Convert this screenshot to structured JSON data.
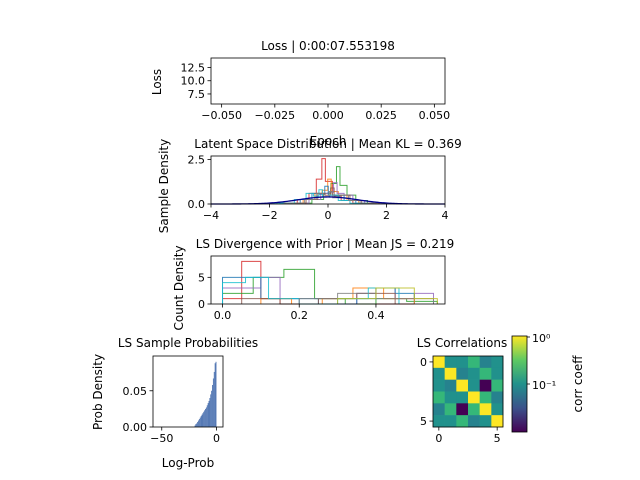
{
  "chart_data": [
    {
      "id": "loss",
      "type": "line",
      "title": "Loss | 0:00:07.553198",
      "xlabel": "Epoch",
      "ylabel": "Loss",
      "xlim": [
        -0.055,
        0.055
      ],
      "ylim": [
        5.6,
        14.3
      ],
      "xticks": [
        "−0.050",
        "−0.025",
        "0.000",
        "0.025",
        "0.050"
      ],
      "yticks": [
        "7.5",
        "10.0",
        "12.5"
      ],
      "series": []
    },
    {
      "id": "latent",
      "type": "line",
      "title": "Latent Space Distribution | Mean KL = 0.369",
      "xlabel": "",
      "ylabel": "Sample Density",
      "xlim": [
        -4,
        4
      ],
      "ylim": [
        0,
        2.7
      ],
      "xticks": [
        "−4",
        "−2",
        "0",
        "2",
        "4"
      ],
      "yticks": [
        "0.0",
        "2.5"
      ],
      "prior_color": "#00008b",
      "series_colors": [
        "#d62728",
        "#2ca02c",
        "#ff7f0e",
        "#9467bd",
        "#1f77b4",
        "#8c564b",
        "#17becf",
        "#7f7f7f"
      ],
      "peaks": [
        {
          "x": -0.15,
          "h": 2.55
        },
        {
          "x": 0.35,
          "h": 2.1
        },
        {
          "x": 0.05,
          "h": 1.4
        },
        {
          "x": 0.25,
          "h": 1.2
        },
        {
          "x": -0.05,
          "h": 1.0
        },
        {
          "x": 0.15,
          "h": 0.9
        },
        {
          "x": -0.25,
          "h": 0.8
        },
        {
          "x": 0.1,
          "h": 0.7
        }
      ]
    },
    {
      "id": "divergence",
      "type": "line",
      "title": "LS Divergence with Prior | Mean JS = 0.219",
      "xlabel": "",
      "ylabel": "Count Density",
      "xlim": [
        -0.03,
        0.58
      ],
      "ylim": [
        0,
        9
      ],
      "xticks": [
        "0.0",
        "0.2",
        "0.4"
      ],
      "yticks": [
        "0",
        "5"
      ],
      "series": [
        {
          "color": "#d62728",
          "edges": [
            0,
            0.05,
            0.1,
            0.15,
            0.2,
            0.25,
            0.3,
            0.35,
            0.4,
            0.45,
            0.5
          ],
          "values": [
            1,
            8,
            1,
            0,
            0,
            0,
            0,
            0,
            0,
            0
          ]
        },
        {
          "color": "#2ca02c",
          "edges": [
            0,
            0.08,
            0.16,
            0.24,
            0.32,
            0.4,
            0.48,
            0.56
          ],
          "values": [
            2,
            5,
            6.5,
            1,
            0,
            1,
            0.5
          ]
        },
        {
          "color": "#9467bd",
          "edges": [
            0,
            0.05,
            0.1,
            0.15,
            0.2,
            0.25,
            0.3,
            0.35,
            0.4,
            0.45,
            0.5,
            0.55
          ],
          "values": [
            3,
            3,
            5,
            1,
            0,
            0,
            0,
            2,
            3,
            1,
            2
          ]
        },
        {
          "color": "#1f77b4",
          "edges": [
            0,
            0.05,
            0.1,
            0.15,
            0.2,
            0.25,
            0.3,
            0.35,
            0.4,
            0.45,
            0.5
          ],
          "values": [
            5,
            5,
            1,
            1,
            1,
            0,
            0,
            1,
            3,
            2
          ]
        },
        {
          "color": "#ff7f0e",
          "edges": [
            0.1,
            0.18,
            0.26,
            0.34,
            0.42,
            0.5
          ],
          "values": [
            1,
            0,
            1,
            3,
            1
          ]
        },
        {
          "color": "#8c564b",
          "edges": [
            0.05,
            0.15,
            0.25,
            0.35,
            0.45
          ],
          "values": [
            1,
            0,
            1,
            2
          ]
        },
        {
          "color": "#17becf",
          "edges": [
            0,
            0.06,
            0.12,
            0.2,
            0.3,
            0.38,
            0.46
          ],
          "values": [
            4,
            5,
            1,
            0,
            1,
            3
          ]
        },
        {
          "color": "#7f7f7f",
          "edges": [
            0.2,
            0.3,
            0.4,
            0.5,
            0.55
          ],
          "values": [
            1,
            2,
            1,
            1
          ]
        },
        {
          "color": "#bcbd22",
          "edges": [
            0.3,
            0.4,
            0.5,
            0.56
          ],
          "values": [
            1,
            3,
            1
          ]
        }
      ]
    },
    {
      "id": "probabilities",
      "type": "bar",
      "title": "LS Sample Probabilities",
      "xlabel": "Log-Prob",
      "ylabel": "Prob Density",
      "xlim": [
        -58,
        6
      ],
      "ylim": [
        0,
        0.098
      ],
      "xticks": [
        "−50",
        "0"
      ],
      "yticks": [
        "0.00",
        "0.05"
      ],
      "bar_color": "#4c72b0",
      "bins_start": -20,
      "bin_width": 0.8,
      "values": [
        0.002,
        0.004,
        0.005,
        0.007,
        0.009,
        0.011,
        0.013,
        0.015,
        0.017,
        0.019,
        0.021,
        0.023,
        0.025,
        0.027,
        0.03,
        0.033,
        0.036,
        0.04,
        0.045,
        0.05,
        0.058,
        0.067,
        0.076,
        0.088,
        0.09
      ]
    },
    {
      "id": "correlations",
      "type": "heatmap",
      "title": "LS Correlations",
      "xlabel": "",
      "ylabel": "",
      "xticks": [
        "0",
        "5"
      ],
      "yticks": [
        "0",
        "5"
      ],
      "colorbar_label": "corr coeff",
      "colorbar_scale": "log",
      "colorbar_ticks": [
        "10⁰",
        "10⁻¹"
      ],
      "palette": [
        "#440154",
        "#31688e",
        "#26828e",
        "#21918c",
        "#35b779",
        "#fde725"
      ],
      "matrix": [
        [
          5,
          3,
          3,
          4,
          2,
          3
        ],
        [
          3,
          5,
          2,
          3,
          4,
          3
        ],
        [
          3,
          2,
          5,
          3,
          0,
          4
        ],
        [
          4,
          3,
          3,
          5,
          4,
          2
        ],
        [
          2,
          4,
          0,
          4,
          5,
          3
        ],
        [
          3,
          3,
          4,
          2,
          3,
          5
        ]
      ]
    }
  ]
}
